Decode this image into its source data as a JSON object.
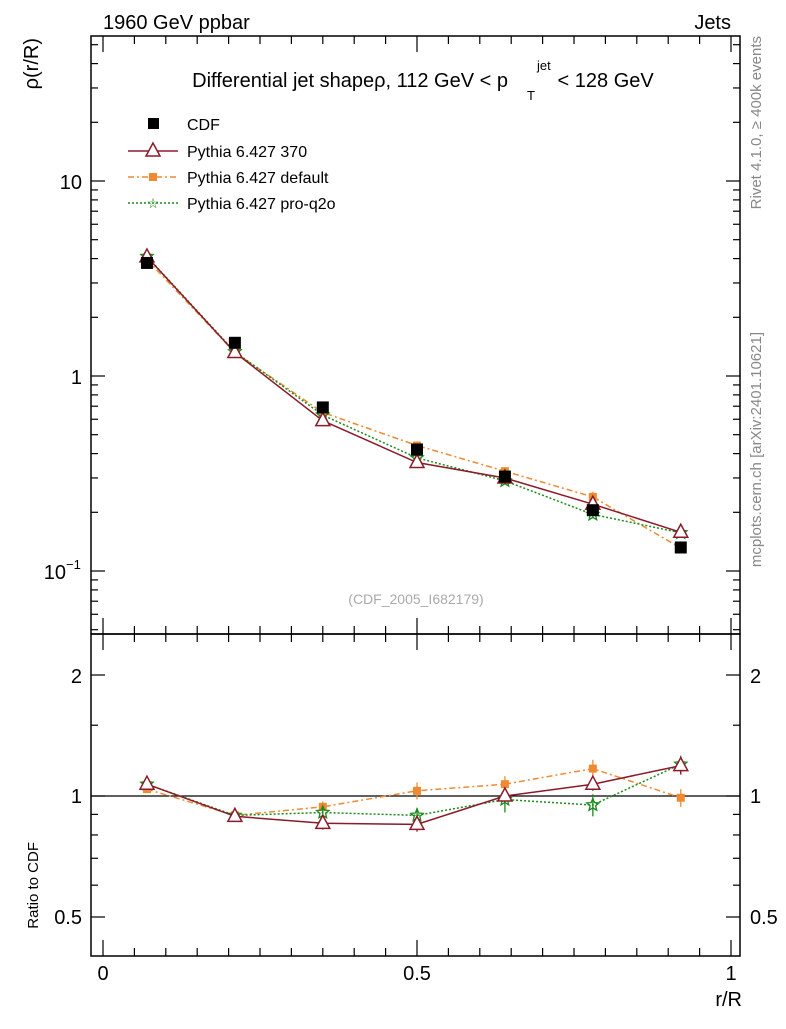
{
  "header": {
    "energy_label": "1960 GeV ppbar",
    "category_label": "Jets",
    "side_label_version": "Rivet 4.1.0, ≥ 400k events",
    "side_label_source": "mcplots.cern.ch [arXiv:2401.10621]",
    "analysis_id": "(CDF_2005_I682179)"
  },
  "colors": {
    "CDF": "#000000",
    "p370": "#8b1a2a",
    "pdefault": "#f08a32",
    "pq2o": "#1a8a1a"
  },
  "chart_data": [
    {
      "type": "line",
      "title": "Differential jet shapeρ, 112 GeV < p",
      "title_sup": "jet",
      "title_sub": "T",
      "title_end": " < 128 GeV",
      "ylabel": "ρ(r/R)",
      "xlabel": "",
      "yscale": "log",
      "xlim": [
        0,
        1
      ],
      "ylim": [
        0.05,
        50
      ],
      "y_ticks": [
        {
          "value": 10,
          "label": "10"
        },
        {
          "value": 1,
          "label": "1"
        },
        {
          "value": 0.1,
          "label": "10",
          "sup": "−1"
        }
      ],
      "x": [
        0.07,
        0.21,
        0.35,
        0.5,
        0.64,
        0.78,
        0.92
      ],
      "series": [
        {
          "name": "CDF",
          "key": "CDF",
          "marker": "square",
          "values": [
            3.8,
            1.48,
            0.69,
            0.42,
            0.305,
            0.205,
            0.132
          ],
          "errors": [
            0.1,
            0.04,
            0.02,
            0.015,
            0.01,
            0.008,
            0.008
          ]
        },
        {
          "name": "Pythia 6.427 370",
          "key": "p370",
          "marker": "triangle",
          "values": [
            4.08,
            1.32,
            0.59,
            0.36,
            0.3,
            0.22,
            0.158
          ],
          "errors": [
            0.04,
            0.02,
            0.01,
            0.008,
            0.007,
            0.006,
            0.006
          ]
        },
        {
          "name": "Pythia 6.427 default",
          "key": "pdefault",
          "marker": "smallsquare",
          "values": [
            3.95,
            1.32,
            0.65,
            0.44,
            0.325,
            0.24,
            0.131
          ],
          "errors": [
            0.05,
            0.02,
            0.015,
            0.015,
            0.015,
            0.015,
            0.008
          ]
        },
        {
          "name": "Pythia 6.427 pro-q2o",
          "key": "pq2o",
          "marker": "star",
          "values": [
            4.1,
            1.33,
            0.63,
            0.38,
            0.29,
            0.195,
            0.157
          ],
          "errors": [
            0.04,
            0.02,
            0.012,
            0.01,
            0.008,
            0.008,
            0.008
          ]
        }
      ]
    },
    {
      "type": "line",
      "ylabel": "Ratio to CDF",
      "xlabel": "r/R",
      "xlim": [
        0,
        1
      ],
      "ylim": [
        0.4,
        2.4
      ],
      "y_ticks": [
        {
          "value": 2,
          "label": "2"
        },
        {
          "value": 1,
          "label": "1"
        },
        {
          "value": 0.5,
          "label": "0.5"
        }
      ],
      "x_ticks": [
        {
          "value": 0,
          "label": "0"
        },
        {
          "value": 0.5,
          "label": "0.5"
        },
        {
          "value": 1,
          "label": "1"
        }
      ],
      "x": [
        0.07,
        0.21,
        0.35,
        0.5,
        0.64,
        0.78,
        0.92
      ],
      "series": [
        {
          "name": "Pythia 6.427 370",
          "key": "p370",
          "marker": "triangle",
          "values": [
            1.07,
            0.89,
            0.855,
            0.85,
            1.0,
            1.07,
            1.19
          ],
          "errors": [
            0.02,
            0.02,
            0.03,
            0.035,
            0.035,
            0.04,
            0.06
          ]
        },
        {
          "name": "Pythia 6.427 default",
          "key": "pdefault",
          "marker": "smallsquare",
          "values": [
            1.04,
            0.895,
            0.94,
            1.03,
            1.07,
            1.17,
            0.99
          ],
          "errors": [
            0.02,
            0.02,
            0.03,
            0.05,
            0.05,
            0.06,
            0.05
          ]
        },
        {
          "name": "Pythia 6.427 pro-q2o",
          "key": "pq2o",
          "marker": "star",
          "values": [
            1.07,
            0.895,
            0.91,
            0.895,
            0.98,
            0.95,
            1.2
          ],
          "errors": [
            0.02,
            0.02,
            0.03,
            0.04,
            0.07,
            0.06,
            0.06
          ]
        }
      ]
    }
  ]
}
